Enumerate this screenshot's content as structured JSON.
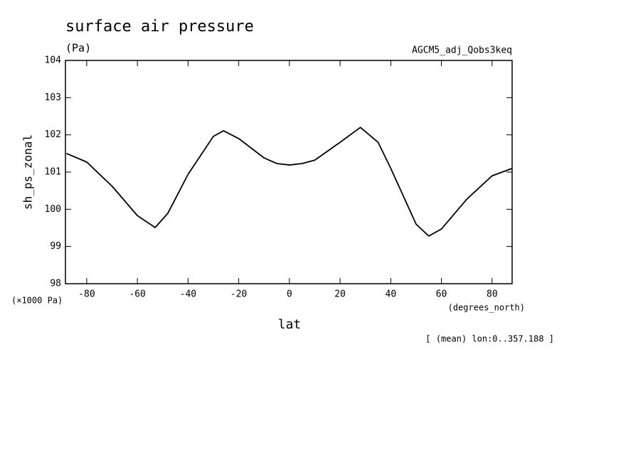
{
  "chart_data": {
    "type": "line",
    "title": "surface air pressure",
    "subtitle": "(Pa)",
    "dataset": "AGCM5_adj_Qobs3keq",
    "y_label": "sh_ps_zonal",
    "y_unit": "(×1000 Pa)",
    "x_label": "lat",
    "x_unit": "(degrees_north)",
    "note": "[ (mean) lon:0..357.188 ]",
    "x": [
      -88,
      -80,
      -70,
      -60,
      -53,
      -48,
      -40,
      -30,
      -26,
      -20,
      -10,
      -5,
      0,
      5,
      10,
      20,
      28,
      35,
      40,
      50,
      55,
      60,
      70,
      80,
      88
    ],
    "series": [
      {
        "name": "sh_ps_zonal",
        "color": "#000000",
        "values": [
          101.5,
          101.27,
          100.62,
          99.83,
          99.51,
          99.89,
          100.94,
          101.96,
          102.11,
          101.9,
          101.38,
          101.23,
          101.19,
          101.23,
          101.32,
          101.8,
          102.2,
          101.8,
          101.1,
          99.6,
          99.28,
          99.47,
          100.27,
          100.9,
          101.1
        ]
      }
    ],
    "xlim": [
      -88.4,
      87.9
    ],
    "xticks": [
      -80,
      -60,
      -40,
      -20,
      0,
      20,
      40,
      60,
      80
    ],
    "ylim": [
      98,
      104
    ],
    "yticks": [
      98,
      99,
      100,
      101,
      102,
      103,
      104
    ],
    "grid": false
  }
}
